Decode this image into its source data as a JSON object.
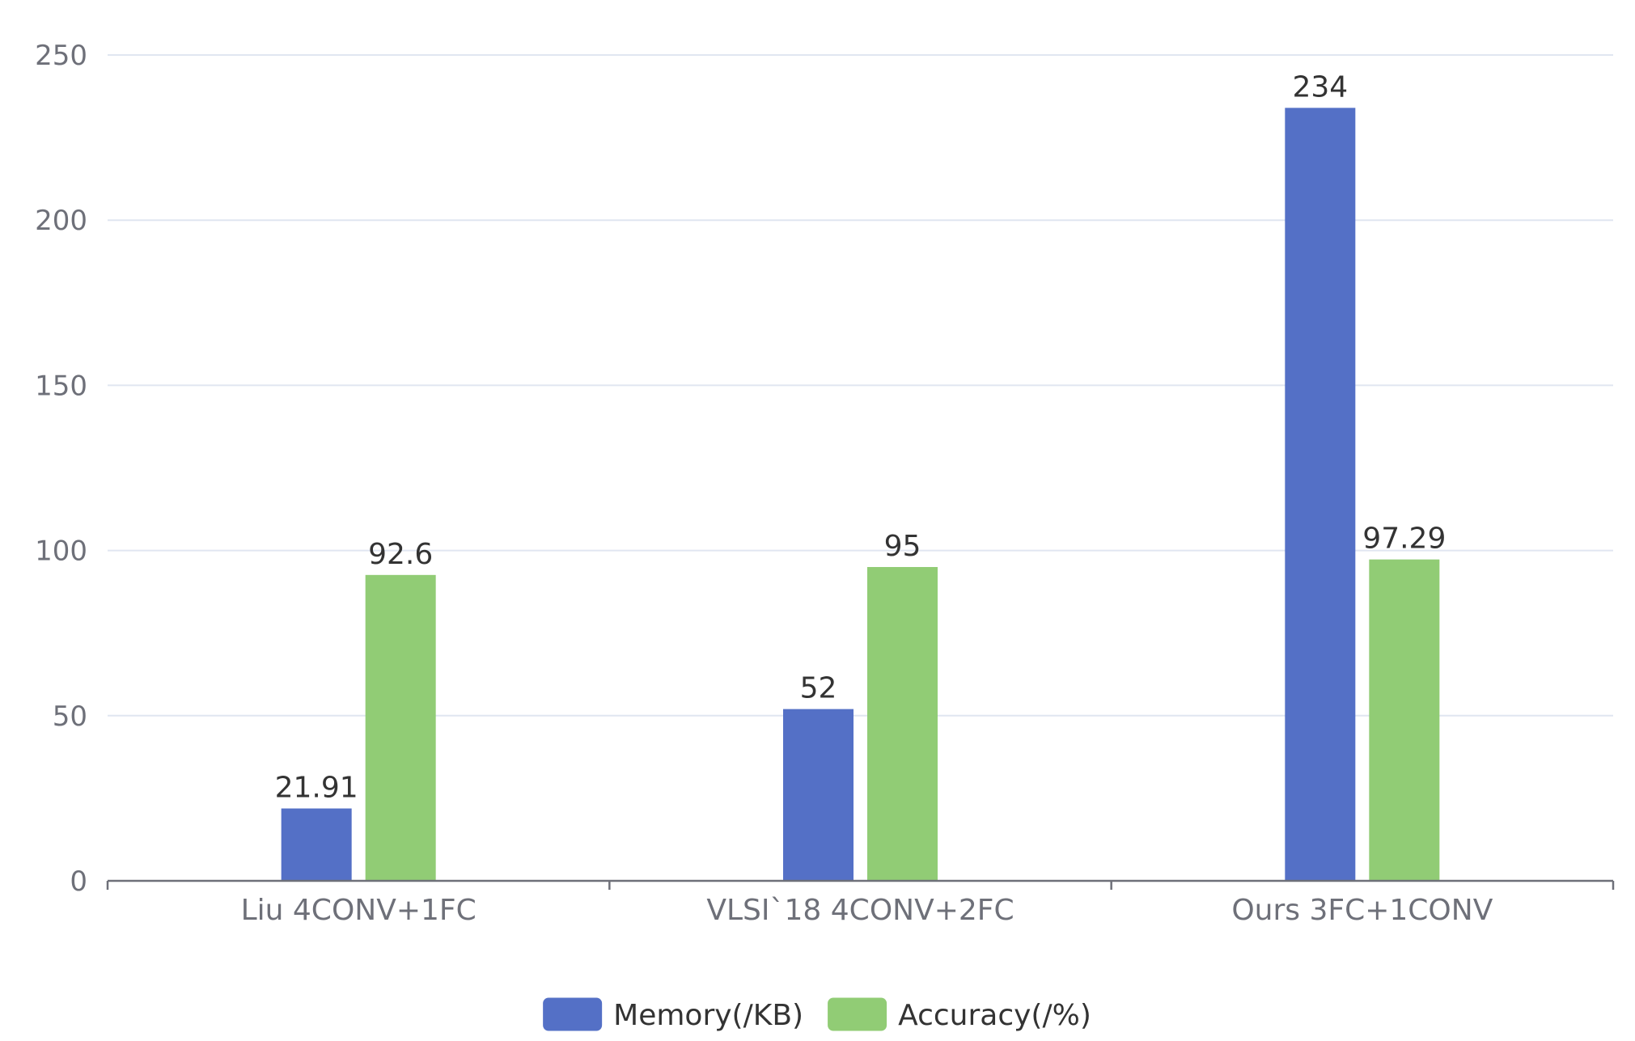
{
  "chart_data": {
    "type": "bar",
    "categories": [
      "Liu 4CONV+1FC",
      "VLSI`18 4CONV+2FC",
      "Ours 3FC+1CONV"
    ],
    "series": [
      {
        "name": "Memory(/KB)",
        "values": [
          21.91,
          52,
          234
        ],
        "labels": [
          "21.91",
          "52",
          "234"
        ],
        "color": "#5470c6"
      },
      {
        "name": "Accuracy(/%)",
        "values": [
          92.6,
          95,
          97.29
        ],
        "labels": [
          "92.6",
          "95",
          "97.29"
        ],
        "color": "#91cc75"
      }
    ],
    "yticks": [
      0,
      50,
      100,
      150,
      200,
      250
    ],
    "ytick_labels": [
      "0",
      "50",
      "100",
      "150",
      "200",
      "250"
    ],
    "ylim": [
      0,
      250
    ],
    "grid": true,
    "legend": "bottom-center",
    "title": "",
    "xlabel": "",
    "ylabel": ""
  }
}
